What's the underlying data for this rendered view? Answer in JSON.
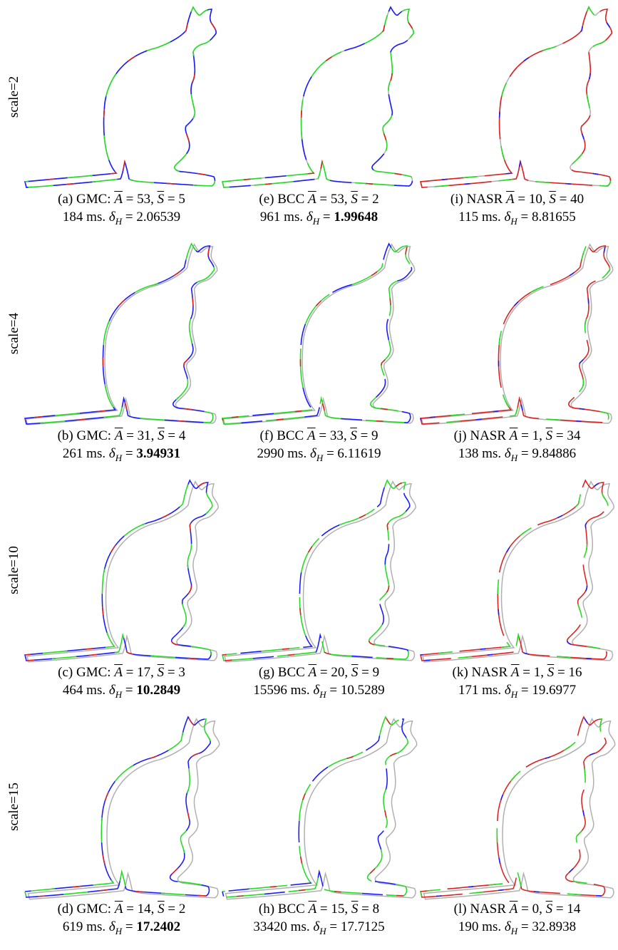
{
  "symbols": {
    "a": "A",
    "s": "S",
    "eq": "=",
    "comma": ",",
    "delta": "δ",
    "sub": "H"
  },
  "rows": [
    {
      "label": "scale=2",
      "panels": [
        {
          "tag": "(a)",
          "method": "GMC:",
          "a": "53",
          "s": "5",
          "time": "184 ms.",
          "delta": "2.06539",
          "best": false
        },
        {
          "tag": "(e)",
          "method": "BCC",
          "a": "53",
          "s": "2",
          "time": "961 ms.",
          "delta": "1.99648",
          "best": true
        },
        {
          "tag": "(i)",
          "method": "NASR",
          "a": "10",
          "s": "40",
          "time": "115 ms.",
          "delta": "8.81655",
          "best": false
        }
      ]
    },
    {
      "label": "scale=4",
      "panels": [
        {
          "tag": "(b)",
          "method": "GMC:",
          "a": "31",
          "s": "4",
          "time": "261 ms.",
          "delta": "3.94931",
          "best": true
        },
        {
          "tag": "(f)",
          "method": "BCC",
          "a": "33",
          "s": "9",
          "time": "2990 ms.",
          "delta": "6.11619",
          "best": false
        },
        {
          "tag": "(j)",
          "method": "NASR",
          "a": "1",
          "s": "34",
          "time": "138 ms.",
          "delta": "9.84886",
          "best": false
        }
      ]
    },
    {
      "label": "scale=10",
      "panels": [
        {
          "tag": "(c)",
          "method": "GMC:",
          "a": "17",
          "s": "3",
          "time": "464 ms.",
          "delta": "10.2849",
          "best": true
        },
        {
          "tag": "(g)",
          "method": "BCC",
          "a": "20",
          "s": "9",
          "time": "15596 ms.",
          "delta": "10.5289",
          "best": false
        },
        {
          "tag": "(k)",
          "method": "NASR",
          "a": "1",
          "s": "16",
          "time": "171 ms.",
          "delta": "19.6977",
          "best": false
        }
      ]
    },
    {
      "label": "scale=15",
      "panels": [
        {
          "tag": "(d)",
          "method": "GMC:",
          "a": "14",
          "s": "2",
          "time": "619 ms.",
          "delta": "17.2402",
          "best": true
        },
        {
          "tag": "(h)",
          "method": "BCC",
          "a": "15",
          "s": "8",
          "time": "33420 ms.",
          "delta": "17.7125",
          "best": false
        },
        {
          "tag": "(l)",
          "method": "NASR",
          "a": "0",
          "s": "14",
          "time": "190 ms.",
          "delta": "32.8938",
          "best": false
        }
      ]
    }
  ]
}
